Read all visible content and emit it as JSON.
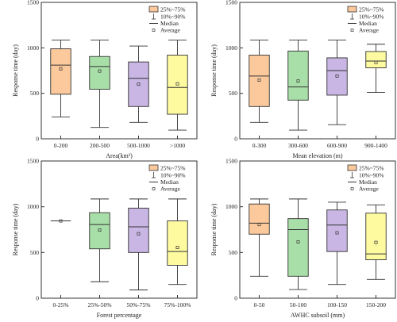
{
  "chart_data": [
    {
      "type": "box",
      "xlabel": "Area(km²)",
      "ylabel": "Response time (day)",
      "ylim": [
        0,
        1500
      ],
      "yticks": [
        0,
        500,
        1000,
        1500
      ],
      "categories": [
        "0-200",
        "200-500",
        "500-1000",
        ">1000"
      ],
      "colors": [
        "#fbc99c",
        "#a8dfa8",
        "#c9b6e4",
        "#fdfaa0"
      ],
      "boxes": [
        {
          "whisker_low": 240,
          "q1": 490,
          "median": 810,
          "q3": 990,
          "whisker_high": 1085,
          "mean": 770
        },
        {
          "whisker_low": 125,
          "q1": 545,
          "median": 795,
          "q3": 905,
          "whisker_high": 1085,
          "mean": 745
        },
        {
          "whisker_low": 180,
          "q1": 355,
          "median": 665,
          "q3": 845,
          "whisker_high": 1020,
          "mean": 600
        },
        {
          "whisker_low": 95,
          "q1": 270,
          "median": 565,
          "q3": 920,
          "whisker_high": 1085,
          "mean": 605
        }
      ]
    },
    {
      "type": "box",
      "xlabel": "Mean elevation (m)",
      "ylabel": "Response time (day)",
      "ylim": [
        0,
        1500
      ],
      "yticks": [
        0,
        500,
        1000,
        1500
      ],
      "categories": [
        "0-300",
        "300-600",
        "600-900",
        "900-1400"
      ],
      "colors": [
        "#fbc99c",
        "#a8dfa8",
        "#c9b6e4",
        "#fdfaa0"
      ],
      "boxes": [
        {
          "whisker_low": 180,
          "q1": 355,
          "median": 690,
          "q3": 920,
          "whisker_high": 1085,
          "mean": 645
        },
        {
          "whisker_low": 95,
          "q1": 425,
          "median": 570,
          "q3": 965,
          "whisker_high": 1085,
          "mean": 635
        },
        {
          "whisker_low": 155,
          "q1": 480,
          "median": 750,
          "q3": 890,
          "whisker_high": 1085,
          "mean": 690
        },
        {
          "whisker_low": 510,
          "q1": 780,
          "median": 855,
          "q3": 960,
          "whisker_high": 1040,
          "mean": 840
        }
      ]
    },
    {
      "type": "box",
      "xlabel": "Forest percentage",
      "ylabel": "Response time (day)",
      "ylim": [
        0,
        1500
      ],
      "yticks": [
        0,
        500,
        1000,
        1500
      ],
      "categories": [
        "0-25%",
        "25%-50%",
        "50%-75%",
        "75%-100%"
      ],
      "colors": [
        "#fbc99c",
        "#a8dfa8",
        "#c9b6e4",
        "#fdfaa0"
      ],
      "boxes": [
        {
          "whisker_low": 845,
          "q1": 845,
          "median": 845,
          "q3": 845,
          "whisker_high": 845,
          "mean": 845
        },
        {
          "whisker_low": 180,
          "q1": 540,
          "median": 805,
          "q3": 935,
          "whisker_high": 1085,
          "mean": 745
        },
        {
          "whisker_low": 90,
          "q1": 500,
          "median": 780,
          "q3": 985,
          "whisker_high": 1085,
          "mean": 705
        },
        {
          "whisker_low": 150,
          "q1": 360,
          "median": 510,
          "q3": 845,
          "whisker_high": 1085,
          "mean": 555
        }
      ]
    },
    {
      "type": "box",
      "xlabel": "AWHC subsoil (mm)",
      "ylabel": "Response time (day)",
      "ylim": [
        0,
        1500
      ],
      "yticks": [
        0,
        500,
        1000,
        1500
      ],
      "categories": [
        "0-50",
        "50-100",
        "100-150",
        "150-200"
      ],
      "colors": [
        "#fbc99c",
        "#a8dfa8",
        "#c9b6e4",
        "#fdfaa0"
      ],
      "boxes": [
        {
          "whisker_low": 240,
          "q1": 700,
          "median": 820,
          "q3": 1030,
          "whisker_high": 1085,
          "mean": 805
        },
        {
          "whisker_low": 95,
          "q1": 240,
          "median": 750,
          "q3": 870,
          "whisker_high": 1085,
          "mean": 615
        },
        {
          "whisker_low": 150,
          "q1": 510,
          "median": 800,
          "q3": 965,
          "whisker_high": 1050,
          "mean": 715
        },
        {
          "whisker_low": 205,
          "q1": 420,
          "median": 485,
          "q3": 930,
          "whisker_high": 1020,
          "mean": 610
        }
      ]
    }
  ],
  "legend": {
    "items": [
      "25%~75%",
      "10%~90%",
      "Median",
      "Average"
    ]
  }
}
